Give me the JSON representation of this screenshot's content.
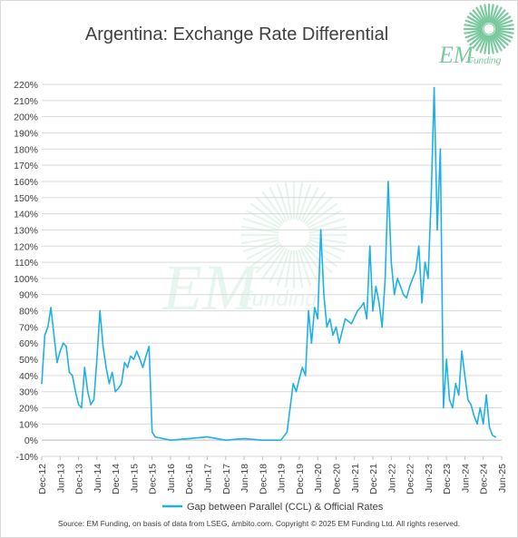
{
  "chart_data": {
    "type": "line",
    "title": "Argentina: Exchange Rate Differential",
    "xlabel": "",
    "ylabel": "",
    "ylim": [
      -10,
      220
    ],
    "y_ticks": [
      "-10%",
      "0%",
      "10%",
      "20%",
      "30%",
      "40%",
      "50%",
      "60%",
      "70%",
      "80%",
      "90%",
      "100%",
      "110%",
      "120%",
      "130%",
      "140%",
      "150%",
      "160%",
      "170%",
      "180%",
      "190%",
      "200%",
      "210%",
      "220%"
    ],
    "x_ticks": [
      "Dec-12",
      "Jun-13",
      "Dec-13",
      "Jun-14",
      "Dec-14",
      "Jun-15",
      "Dec-15",
      "Jun-16",
      "Dec-16",
      "Jun-17",
      "Dec-17",
      "Jun-18",
      "Dec-18",
      "Jun-19",
      "Dec-19",
      "Jun-20",
      "Dec-20",
      "Jun-21",
      "Dec-21",
      "Jun-22",
      "Dec-22",
      "Jun-23",
      "Dec-23",
      "Jun-24",
      "Dec-24",
      "Jun-25"
    ],
    "grid": "horizontal",
    "legend_position": "bottom",
    "series": [
      {
        "name": "Gap between Parallel (CCL) & Official Rates",
        "color": "#1fb1e6",
        "x": [
          "2012-12",
          "2013-01",
          "2013-02",
          "2013-03",
          "2013-04",
          "2013-05",
          "2013-06",
          "2013-07",
          "2013-08",
          "2013-09",
          "2013-10",
          "2013-11",
          "2013-12",
          "2014-01",
          "2014-02",
          "2014-03",
          "2014-04",
          "2014-05",
          "2014-06",
          "2014-07",
          "2014-08",
          "2014-09",
          "2014-10",
          "2014-11",
          "2014-12",
          "2015-01",
          "2015-02",
          "2015-03",
          "2015-04",
          "2015-05",
          "2015-06",
          "2015-07",
          "2015-08",
          "2015-09",
          "2015-10",
          "2015-11",
          "2015-12",
          "2016-01",
          "2016-06",
          "2016-12",
          "2017-06",
          "2017-12",
          "2018-06",
          "2018-12",
          "2019-06",
          "2019-08",
          "2019-09",
          "2019-10",
          "2019-11",
          "2019-12",
          "2020-01",
          "2020-02",
          "2020-03",
          "2020-04",
          "2020-05",
          "2020-06",
          "2020-07",
          "2020-08",
          "2020-09",
          "2020-10",
          "2020-11",
          "2020-12",
          "2021-01",
          "2021-03",
          "2021-05",
          "2021-07",
          "2021-08",
          "2021-09",
          "2021-10",
          "2021-11",
          "2021-12",
          "2022-01",
          "2022-02",
          "2022-03",
          "2022-04",
          "2022-05",
          "2022-06",
          "2022-07",
          "2022-08",
          "2022-09",
          "2022-10",
          "2022-11",
          "2022-12",
          "2023-01",
          "2023-02",
          "2023-03",
          "2023-04",
          "2023-05",
          "2023-06",
          "2023-07",
          "2023-08",
          "2023-09",
          "2023-10",
          "2023-11",
          "2023-12",
          "2024-01",
          "2024-02",
          "2024-03",
          "2024-04",
          "2024-05",
          "2024-06",
          "2024-07",
          "2024-08",
          "2024-09",
          "2024-10",
          "2024-11",
          "2024-12",
          "2025-01",
          "2025-02",
          "2025-03",
          "2025-04"
        ],
        "values": [
          35,
          65,
          70,
          82,
          65,
          48,
          55,
          60,
          58,
          42,
          40,
          30,
          22,
          20,
          45,
          30,
          22,
          25,
          50,
          80,
          58,
          45,
          35,
          42,
          30,
          32,
          35,
          48,
          45,
          52,
          50,
          55,
          50,
          45,
          52,
          58,
          5,
          2,
          0,
          1,
          2,
          0,
          1,
          0,
          0,
          5,
          20,
          35,
          30,
          38,
          45,
          40,
          80,
          60,
          82,
          75,
          130,
          90,
          70,
          75,
          65,
          70,
          60,
          75,
          72,
          80,
          82,
          85,
          75,
          120,
          80,
          95,
          85,
          70,
          100,
          160,
          110,
          90,
          100,
          95,
          90,
          88,
          95,
          100,
          105,
          120,
          85,
          110,
          100,
          150,
          218,
          130,
          180,
          20,
          50,
          25,
          20,
          35,
          28,
          55,
          40,
          25,
          22,
          15,
          10,
          20,
          10,
          28,
          8,
          3,
          2
        ]
      }
    ]
  },
  "brand": {
    "logo_text": "EM",
    "logo_sub": "Funding",
    "logo_color": "#7cc9a0"
  },
  "source_text": "Source: EM Funding, on basis of data from LSEG, ámbito.com. Copyright © 2025 EM Funding Ltd. All rights reserved."
}
